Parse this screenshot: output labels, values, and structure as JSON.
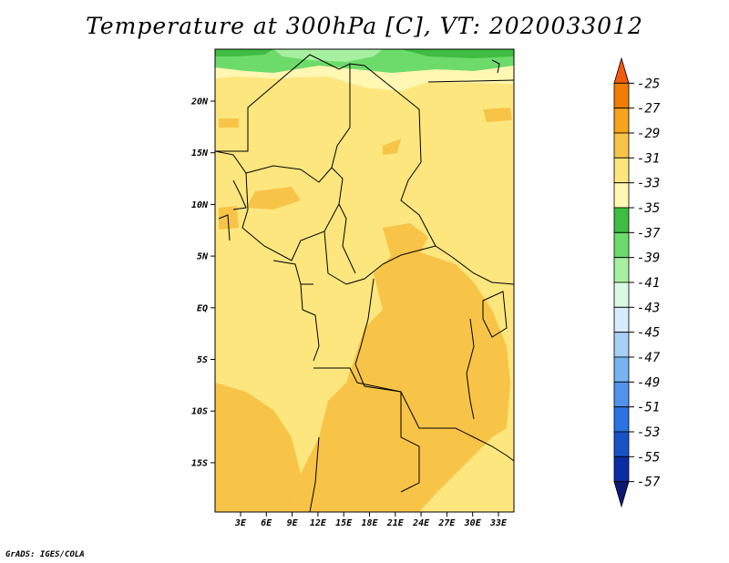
{
  "title": "Temperature at 300hPa [C], VT: 2020033012",
  "credit": "GrADS: IGES/COLA",
  "map": {
    "lat_ticks": [
      "20N",
      "15N",
      "10N",
      "5N",
      "EQ",
      "5S",
      "10S",
      "15S"
    ],
    "lon_ticks": [
      "3E",
      "6E",
      "9E",
      "12E",
      "15E",
      "18E",
      "21E",
      "24E",
      "27E",
      "30E",
      "33E"
    ]
  },
  "colorbar": {
    "labels": [
      "-25",
      "-27",
      "-29",
      "-31",
      "-33",
      "-35",
      "-37",
      "-39",
      "-41",
      "-43",
      "-45",
      "-47",
      "-49",
      "-51",
      "-53",
      "-55",
      "-57"
    ],
    "colors": [
      "#f25a0d",
      "#f07d05",
      "#f5a41c",
      "#f8c447",
      "#fde67e",
      "#fff7b2",
      "#3ebd42",
      "#6ddb6a",
      "#a6f0a0",
      "#d9fae0",
      "#d8ecff",
      "#a7d0f7",
      "#78b3f1",
      "#4f93ea",
      "#2b73e0",
      "#1953c8",
      "#0b2da3",
      "#0a1a72"
    ]
  }
}
